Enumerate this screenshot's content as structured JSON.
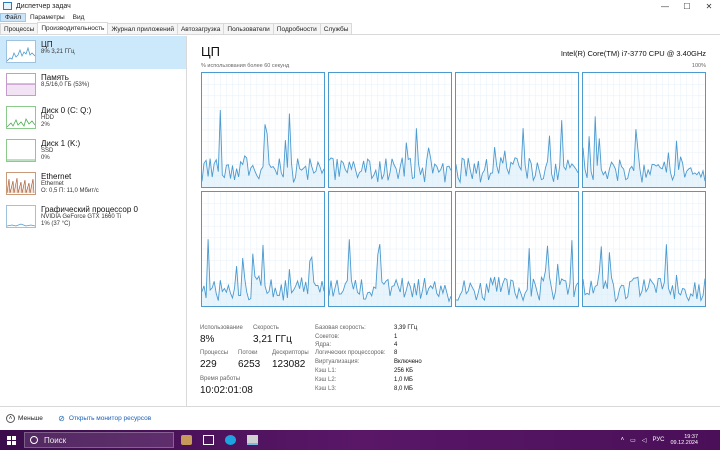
{
  "window": {
    "title": "Диспетчер задач",
    "controls": {
      "minimize": "—",
      "maximize": "☐",
      "close": "✕"
    }
  },
  "menu": [
    "Файл",
    "Параметры",
    "Вид"
  ],
  "tabs": [
    {
      "label": "Процессы",
      "active": false
    },
    {
      "label": "Производительность",
      "active": true
    },
    {
      "label": "Журнал приложений",
      "active": false
    },
    {
      "label": "Автозагрузка",
      "active": false
    },
    {
      "label": "Пользователи",
      "active": false
    },
    {
      "label": "Подробности",
      "active": false
    },
    {
      "label": "Службы",
      "active": false
    }
  ],
  "sidebar": {
    "items": [
      {
        "name": "ЦП",
        "line1": "8% 3,21 ГГц",
        "line2": "",
        "line3": "",
        "color": "#4b9ad0",
        "selected": true
      },
      {
        "name": "Память",
        "line1": "8,5/16,0 ГБ (53%)",
        "line2": "",
        "line3": "",
        "color": "#9b4fa8",
        "selected": false
      },
      {
        "name": "Диск 0 (C: Q:)",
        "line1": "HDD",
        "line2": "2%",
        "line3": "",
        "color": "#4caf50",
        "selected": false
      },
      {
        "name": "Диск 1 (K:)",
        "line1": "SSD",
        "line2": "0%",
        "line3": "",
        "color": "#4caf50",
        "selected": false
      },
      {
        "name": "Ethernet",
        "line1": "Ethernet",
        "line2": "О: 0,5 П: 11,0 Мбит/с",
        "line3": "",
        "color": "#a0522d",
        "selected": false
      },
      {
        "name": "Графический процессор 0",
        "line1": "NVIDIA GeForce GTX 1660 Ti",
        "line2": "1% (37 °C)",
        "line3": "",
        "color": "#4b9ad0",
        "selected": false
      }
    ]
  },
  "main": {
    "title": "ЦП",
    "model": "Intel(R) Core(TM) i7-3770 CPU @ 3.40GHz",
    "util_label": "% использования более 60 секунд",
    "pct_max": "100%",
    "stats": {
      "usage_label": "Использование",
      "usage_value": "8%",
      "speed_label": "Скорость",
      "speed_value": "3,21 ГГц",
      "proc_label": "Процессы",
      "proc_value": "229",
      "threads_label": "Потоки",
      "threads_value": "6253",
      "handles_label": "Дескрипторы",
      "handles_value": "123082",
      "uptime_label": "Время работы",
      "uptime_value": "10:02:01:08"
    },
    "details": [
      {
        "label": "Базовая скорость:",
        "value": "3,39 ГГц"
      },
      {
        "label": "Сокетов:",
        "value": "1"
      },
      {
        "label": "Ядра:",
        "value": "4"
      },
      {
        "label": "Логических процессоров:",
        "value": "8"
      },
      {
        "label": "Виртуализация:",
        "value": "Включено"
      },
      {
        "label": "Кэш L1:",
        "value": "256 КБ"
      },
      {
        "label": "Кэш L2:",
        "value": "1,0 МБ"
      },
      {
        "label": "Кэш L3:",
        "value": "8,0 МБ"
      }
    ]
  },
  "footer": {
    "less_label": "Меньше",
    "monitor_label": "Открыть монитор ресурсов"
  },
  "taskbar": {
    "search_placeholder": "Поиск",
    "lang": "РУС",
    "time": "19:37",
    "date": "09.12.2024"
  },
  "colors": {
    "cpu_line": "#4b9ad0",
    "cpu_fill": "#d9ecf8",
    "selected_bg": "#cce8fb",
    "taskbar": "#4a0f58"
  }
}
